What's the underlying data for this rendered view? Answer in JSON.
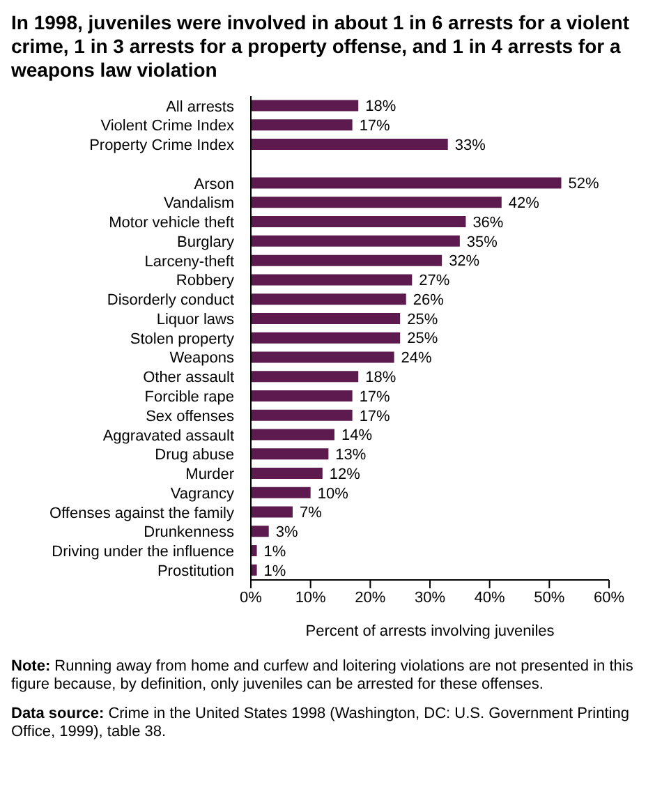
{
  "chart_data": {
    "type": "bar",
    "orientation": "horizontal",
    "title": "In 1998, juveniles were involved in about 1 in 6 arrests for a violent crime, 1 in 3 arrests for a property offense, and 1 in 4 arrests for a weapons law violation",
    "categories": [
      "All arrests",
      "Violent Crime Index",
      "Property Crime Index",
      null,
      "Arson",
      "Vandalism",
      "Motor vehicle theft",
      "Burglary",
      "Larceny-theft",
      "Robbery",
      "Disorderly conduct",
      "Liquor laws",
      "Stolen property",
      "Weapons",
      "Other assault",
      "Forcible rape",
      "Sex offenses",
      "Aggravated assault",
      "Drug abuse",
      "Murder",
      "Vagrancy",
      "Offenses against the family",
      "Drunkenness",
      "Driving under the influence",
      "Prostitution"
    ],
    "values": [
      18,
      17,
      33,
      null,
      52,
      42,
      36,
      35,
      32,
      27,
      26,
      25,
      25,
      24,
      18,
      17,
      17,
      14,
      13,
      12,
      10,
      7,
      3,
      1,
      1
    ],
    "value_labels": [
      "18%",
      "17%",
      "33%",
      null,
      "52%",
      "42%",
      "36%",
      "35%",
      "32%",
      "27%",
      "26%",
      "25%",
      "25%",
      "24%",
      "18%",
      "17%",
      "17%",
      "14%",
      "13%",
      "12%",
      "10%",
      "7%",
      "3%",
      "1%",
      "1%"
    ],
    "color": "#5c1a4e",
    "xlim": [
      0,
      60
    ],
    "xticks": [
      {
        "value": 0,
        "label": "0%"
      },
      {
        "value": 10,
        "label": "10%"
      },
      {
        "value": 20,
        "label": "20%"
      },
      {
        "value": 30,
        "label": "30%"
      },
      {
        "value": 40,
        "label": "40%"
      },
      {
        "value": 50,
        "label": "50%"
      },
      {
        "value": 60,
        "label": "60%"
      }
    ],
    "xlabel": "Percent of arrests involving juveniles",
    "annotations": [
      "Note: Running away from home and curfew and loitering violations are not presented in this figure because, by definition, only juveniles can be arrested for these offenses.",
      "Data source: Crime in the United States 1998 (Washington, DC: U.S. Government Printing Office, 1999), table 38."
    ]
  }
}
